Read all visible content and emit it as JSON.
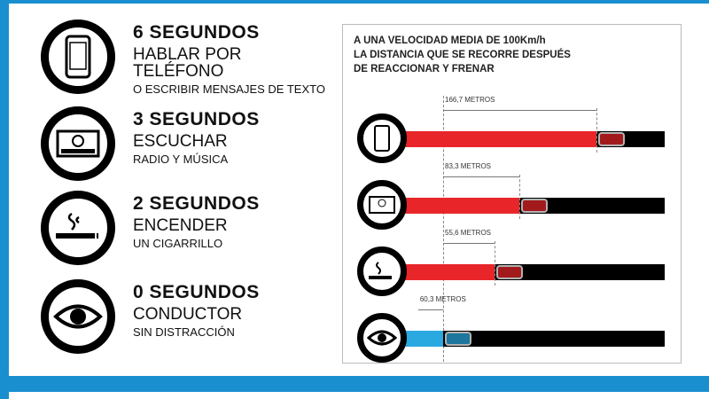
{
  "items": [
    {
      "seconds": "6 SEGUNDOS",
      "action": "HABLAR POR TELÉFONO",
      "detail": "O ESCRIBIR MENSAJES DE TEXTO",
      "icon": "phone-icon"
    },
    {
      "seconds": "3 SEGUNDOS",
      "action": "ESCUCHAR",
      "detail": "RADIO Y MÚSICA",
      "icon": "radio-icon"
    },
    {
      "seconds": "2 SEGUNDOS",
      "action": "ENCENDER",
      "detail": "UN CIGARRILLO",
      "icon": "cigarette-icon"
    },
    {
      "seconds": "0 SEGUNDOS",
      "action": "CONDUCTOR",
      "detail": "SIN DISTRACCIÓN",
      "icon": "eye-icon"
    }
  ],
  "panel": {
    "title_lines": [
      "A UNA VELOCIDAD MEDIA DE 100Km/h",
      "LA DISTANCIA QUE SE RECORRE DESPUÉS",
      "DE REACCIONAR Y FRENAR"
    ],
    "rows": [
      {
        "distance": "166,7 METROS",
        "meters": 166.7,
        "color": "#e8262a"
      },
      {
        "distance": "83,3 METROS",
        "meters": 83.3,
        "color": "#e8262a"
      },
      {
        "distance": "55,6 METROS",
        "meters": 55.6,
        "color": "#e8262a"
      },
      {
        "distance": "60,3 METROS",
        "meters": 60.3,
        "color": "#2aa8e0"
      }
    ]
  }
}
